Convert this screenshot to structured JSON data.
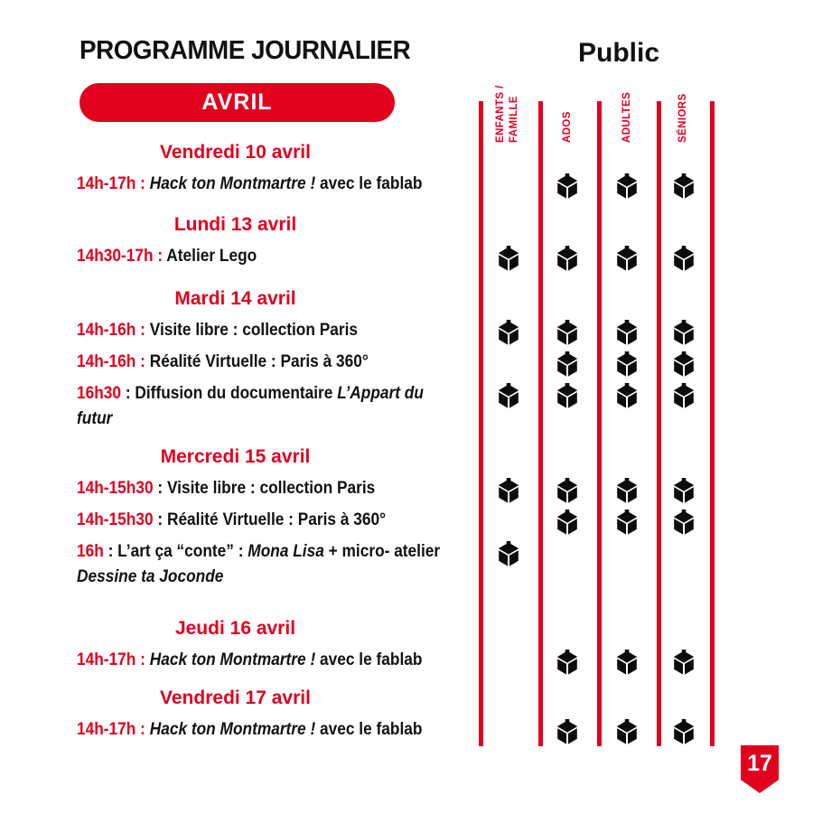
{
  "page": {
    "title": "PROGRAMME JOURNALIER",
    "month_badge": "AVRIL",
    "page_number": "17",
    "accent_color": "#E2001F"
  },
  "public_header": {
    "title": "Public",
    "columns": [
      "ENFANTS /\nFAMILLE",
      "ADOS",
      "ADULTES",
      "SÉNIORS"
    ]
  },
  "schedule": {
    "sections": [
      {
        "day": "Vendredi 10 avril",
        "events": [
          {
            "time": "14h-17h : ",
            "segments": [
              {
                "text": "Hack ton Montmartre !",
                "italic": true
              },
              {
                "text": " avec le fablab"
              }
            ],
            "audiences": [
              false,
              true,
              true,
              true
            ]
          }
        ]
      },
      {
        "day": "Lundi 13 avril",
        "events": [
          {
            "time": "14h30-17h : ",
            "segments": [
              {
                "text": "Atelier Lego"
              }
            ],
            "audiences": [
              true,
              true,
              true,
              true
            ]
          }
        ]
      },
      {
        "day": "Mardi 14 avril",
        "events": [
          {
            "time": "14h-16h : ",
            "segments": [
              {
                "text": "Visite libre : collection Paris"
              }
            ],
            "audiences": [
              true,
              true,
              true,
              true
            ]
          },
          {
            "time": "14h-16h : ",
            "segments": [
              {
                "text": "Réalité Virtuelle : Paris à 360°"
              }
            ],
            "audiences": [
              false,
              true,
              true,
              true
            ]
          },
          {
            "time": "16h30",
            "segments": [
              {
                "text": " : Diffusion du documentaire "
              },
              {
                "text": "L’Appart du",
                "italic": true
              },
              {
                "break": true
              },
              {
                "text": "futur",
                "italic": true
              }
            ],
            "audiences": [
              true,
              true,
              true,
              true
            ]
          }
        ]
      },
      {
        "day": "Mercredi 15 avril",
        "events": [
          {
            "time": "14h-15h30",
            "segments": [
              {
                "text": " : Visite libre : collection Paris"
              }
            ],
            "audiences": [
              true,
              true,
              true,
              true
            ]
          },
          {
            "time": "14h-15h30",
            "segments": [
              {
                "text": " : Réalité Virtuelle : Paris à 360°"
              }
            ],
            "audiences": [
              false,
              true,
              true,
              true
            ]
          },
          {
            "time": "16h",
            "segments": [
              {
                "text": " : L’art ça “conte” : "
              },
              {
                "text": "Mona Lisa",
                "italic": true
              },
              {
                "text": " + micro- atelier"
              },
              {
                "break": true
              },
              {
                "text": "Dessine ta Joconde",
                "italic": true
              }
            ],
            "audiences": [
              true,
              false,
              false,
              false
            ]
          }
        ]
      },
      {
        "day": "Jeudi 16 avril",
        "events": [
          {
            "time": "14h-17h : ",
            "segments": [
              {
                "text": "Hack ton Montmartre !",
                "italic": true
              },
              {
                "text": " avec le fablab"
              }
            ],
            "audiences": [
              false,
              true,
              true,
              true
            ]
          }
        ]
      },
      {
        "day": "Vendredi 17 avril",
        "events": [
          {
            "time": "14h-17h : ",
            "segments": [
              {
                "text": "Hack ton Montmartre !",
                "italic": true
              },
              {
                "text": " avec le fablab"
              }
            ],
            "audiences": [
              false,
              true,
              true,
              true
            ]
          }
        ]
      }
    ]
  }
}
